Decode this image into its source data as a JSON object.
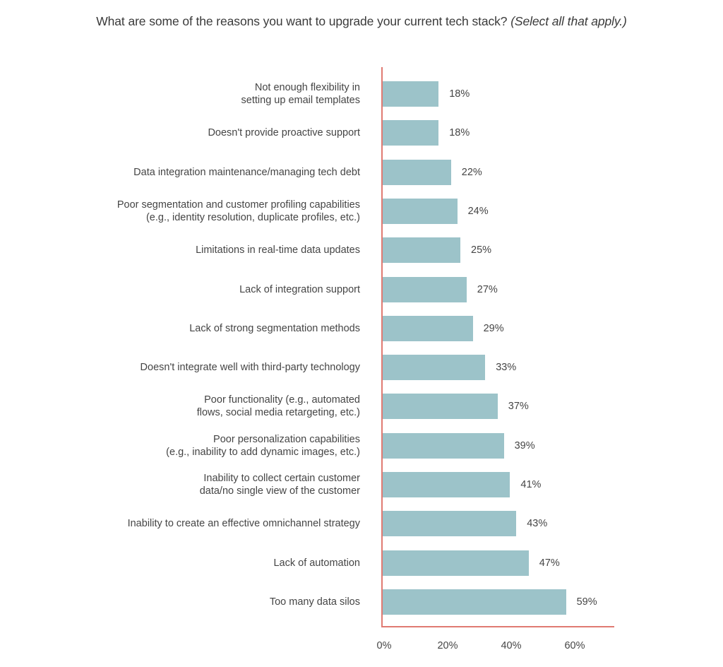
{
  "title": {
    "main": "What are some of the reasons you want to upgrade your current tech stack?",
    "sub": "(Select all that apply.)"
  },
  "colors": {
    "bar": "#9cc3c9",
    "axis": "#e07a72",
    "text": "#454545"
  },
  "chart_data": {
    "type": "bar",
    "orientation": "horizontal",
    "title": "What are some of the reasons you want to upgrade your current tech stack? (Select all that apply.)",
    "xlabel": "",
    "ylabel": "",
    "categories": [
      "Not enough flexibility in\nsetting up email templates",
      "Doesn't provide proactive support",
      "Data integration maintenance/managing tech debt",
      "Poor segmentation and customer profiling capabilities\n(e.g., identity resolution, duplicate profiles, etc.)",
      "Limitations in real-time data updates",
      "Lack of integration support",
      "Lack of strong segmentation methods",
      "Doesn't integrate well with third-party technology",
      "Poor functionality (e.g., automated\nflows, social media retargeting, etc.)",
      "Poor personalization capabilities\n(e.g., inability to add dynamic images, etc.)",
      "Inability to collect certain customer\ndata/no single view of the customer",
      "Inability to create an effective omnichannel strategy",
      "Lack of automation",
      "Too many data silos"
    ],
    "values": [
      18,
      18,
      22,
      24,
      25,
      27,
      29,
      33,
      37,
      39,
      41,
      43,
      47,
      59
    ],
    "value_labels": [
      "18%",
      "18%",
      "22%",
      "24%",
      "25%",
      "27%",
      "29%",
      "33%",
      "37%",
      "39%",
      "41%",
      "43%",
      "47%",
      "59%"
    ],
    "xlim": [
      0,
      70
    ],
    "xticks": [
      0,
      20,
      40,
      60
    ],
    "xtick_labels": [
      "0%",
      "20%",
      "40%",
      "60%"
    ],
    "grid": false,
    "legend": null
  }
}
